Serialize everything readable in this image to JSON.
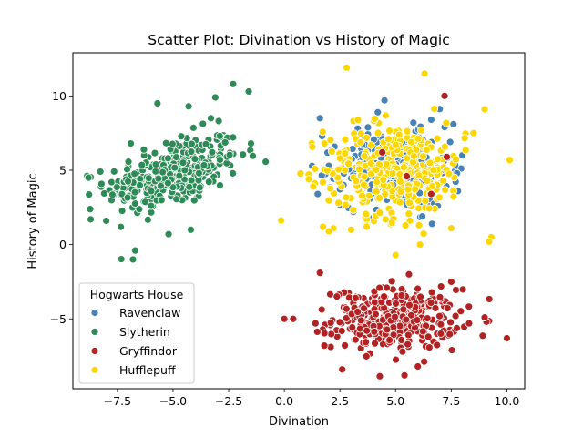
{
  "chart_data": {
    "type": "scatter",
    "title": "Scatter Plot: Divination vs History of Magic",
    "xlabel": "Divination",
    "ylabel": "History of Magic",
    "xlim": [
      -9.5,
      10.8
    ],
    "ylim": [
      -9.7,
      12.9
    ],
    "xticks": [
      -7.5,
      -5.0,
      -2.5,
      0.0,
      2.5,
      5.0,
      7.5,
      10.0
    ],
    "xtick_labels": [
      "−7.5",
      "−5.0",
      "−2.5",
      "0.0",
      "2.5",
      "5.0",
      "7.5",
      "10.0"
    ],
    "yticks": [
      -5,
      0,
      5,
      10
    ],
    "ytick_labels": [
      "−5",
      "0",
      "5",
      "10"
    ],
    "grid": false,
    "legend": {
      "title": "Hogwarts House",
      "placement": "lower-left"
    },
    "series": [
      {
        "name": "Ravenclaw",
        "color": "#4682b4",
        "cluster": {
          "center": [
            5.0,
            5.0
          ],
          "spread": [
            1.2,
            1.2
          ],
          "count": 330
        },
        "x": [
          1.6,
          1.7,
          4.5,
          4.2,
          5.8,
          7.2,
          7.6,
          8.0,
          7.8,
          1.5,
          2.0,
          6.9,
          3.1,
          4.0,
          6.2,
          5.5,
          3.3,
          6.6
        ],
        "y": [
          8.5,
          7.3,
          9.7,
          8.9,
          8.2,
          7.9,
          8.1,
          6.0,
          3.6,
          3.4,
          5.3,
          2.6,
          2.2,
          1.8,
          1.9,
          2.7,
          7.8,
          8.4
        ]
      },
      {
        "name": "Slytherin",
        "color": "#2e8b57",
        "cluster": {
          "center": [
            -5.0,
            4.8
          ],
          "spread": [
            1.5,
            1.3
          ],
          "count": 330
        },
        "x": [
          -2.3,
          -1.6,
          -1.5,
          -3.1,
          -4.3,
          -5.7,
          -6.7,
          -6.8,
          -8.7,
          -8.8,
          -8.0,
          -5.2,
          -4.2,
          -6.9,
          -3.3,
          -2.9
        ],
        "y": [
          10.8,
          10.3,
          6.8,
          9.9,
          9.3,
          9.5,
          -0.4,
          -1.0,
          1.7,
          4.5,
          1.6,
          0.7,
          1.0,
          6.8,
          8.5,
          7.3
        ]
      },
      {
        "name": "Gryffindor",
        "color": "#b22222",
        "cluster": {
          "center": [
            5.0,
            -5.0
          ],
          "spread": [
            1.4,
            1.0
          ],
          "count": 330
        },
        "x": [
          0.0,
          0.4,
          1.4,
          1.6,
          2.6,
          5.4,
          6.0,
          7.5,
          10.0,
          9.0,
          8.3,
          1.8,
          4.6,
          5.6,
          3.2,
          7.2
        ],
        "y": [
          -5.0,
          -5.0,
          -5.3,
          -1.9,
          -8.4,
          -8.8,
          -8.2,
          -2.5,
          -6.3,
          -4.9,
          -5.3,
          -6.8,
          -2.9,
          -2.0,
          -3.6,
          10.0
        ],
        "inside_blue": {
          "x": [
            4.4,
            5.5,
            7.3,
            6.6
          ],
          "y": [
            6.2,
            4.6,
            5.9,
            3.4
          ]
        }
      },
      {
        "name": "Hufflepuff",
        "color": "#ffd700",
        "cluster": {
          "center": [
            5.0,
            5.0
          ],
          "spread": [
            1.6,
            1.6
          ],
          "count": 330
        },
        "x": [
          2.8,
          6.3,
          9.0,
          9.3,
          9.2,
          3.0,
          3.7,
          2.0,
          5.0,
          6.1,
          8.5,
          7.5,
          1.1,
          1.3
        ],
        "y": [
          11.9,
          11.5,
          9.1,
          0.5,
          0.2,
          1.0,
          1.2,
          0.9,
          -0.7,
          0.0,
          7.5,
          1.1,
          4.4,
          3.9
        ]
      }
    ]
  }
}
